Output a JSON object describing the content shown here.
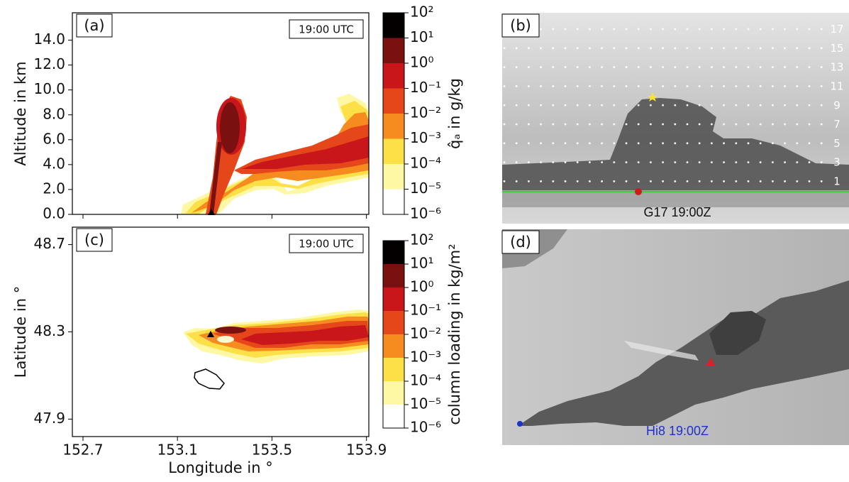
{
  "chart_data": [
    {
      "type": "contour",
      "panel_label": "(a)",
      "time_label": "19:00 UTC",
      "ylabel": "Altitude in km",
      "xlim": [
        152.655,
        153.91
      ],
      "xticks": [
        152.7,
        153.1,
        153.5,
        153.9
      ],
      "show_xticklabels": false,
      "ylim": [
        0,
        16.2
      ],
      "yticks": [
        {
          "value": 0,
          "label": "0.0"
        },
        {
          "value": 2,
          "label": "2.0"
        },
        {
          "value": 4,
          "label": "4.0"
        },
        {
          "value": 6,
          "label": "6.0"
        },
        {
          "value": 8,
          "label": "8.0"
        },
        {
          "value": 10,
          "label": "10.0"
        },
        {
          "value": 12,
          "label": "12.0"
        },
        {
          "value": 14,
          "label": "14.0"
        }
      ],
      "colorbar": {
        "label": "q̂ₐ in g/kg",
        "scale": "log",
        "lim": [
          1e-06,
          100
        ],
        "ticks": [
          {
            "value": 1e-06,
            "label": "10⁻⁶"
          },
          {
            "value": 1e-05,
            "label": "10⁻⁵"
          },
          {
            "value": 0.0001,
            "label": "10⁻⁴"
          },
          {
            "value": 0.001,
            "label": "10⁻³"
          },
          {
            "value": 0.01,
            "label": "10⁻²"
          },
          {
            "value": 0.1,
            "label": "10⁻¹"
          },
          {
            "value": 1,
            "label": "10⁰"
          },
          {
            "value": 10,
            "label": "10¹"
          },
          {
            "value": 100,
            "label": "10²"
          }
        ],
        "colors": [
          "#ffffff",
          "#fef7a3",
          "#fde047",
          "#f68c1f",
          "#e5471a",
          "#c8161b",
          "#7a1010",
          "#050000"
        ]
      }
    },
    {
      "type": "contour",
      "panel_label": "(c)",
      "time_label": "19:00 UTC",
      "ylabel": "Latitude in °",
      "xlabel": "Longitude in °",
      "xlim": [
        152.655,
        153.91
      ],
      "xticks": [
        152.7,
        153.1,
        153.5,
        153.9
      ],
      "show_xticklabels": true,
      "ylim": [
        47.82,
        48.78
      ],
      "yticks": [
        47.9,
        48.3,
        48.7
      ],
      "colorbar": {
        "label": "column loading in kg/m²",
        "scale": "log",
        "lim": [
          1e-06,
          100
        ],
        "ticks": [
          {
            "value": 1e-06,
            "label": "10⁻⁶"
          },
          {
            "value": 1e-05,
            "label": "10⁻⁵"
          },
          {
            "value": 0.0001,
            "label": "10⁻⁴"
          },
          {
            "value": 0.001,
            "label": "10⁻³"
          },
          {
            "value": 0.01,
            "label": "10⁻²"
          },
          {
            "value": 0.1,
            "label": "10⁻¹"
          },
          {
            "value": 1,
            "label": "10⁰"
          },
          {
            "value": 10,
            "label": "10¹"
          },
          {
            "value": 100,
            "label": "10²"
          }
        ],
        "colors": [
          "#ffffff",
          "#fef7a3",
          "#fde047",
          "#f68c1f",
          "#e5471a",
          "#c8161b",
          "#7a1010",
          "#050000"
        ]
      }
    }
  ],
  "images": [
    {
      "panel_label": "(b)",
      "caption": "G17 19:00Z",
      "altitude_labels": [
        1,
        3,
        5,
        7,
        9,
        11,
        13,
        15,
        17
      ]
    },
    {
      "panel_label": "(d)",
      "caption": "Hi8 19:00Z"
    }
  ]
}
